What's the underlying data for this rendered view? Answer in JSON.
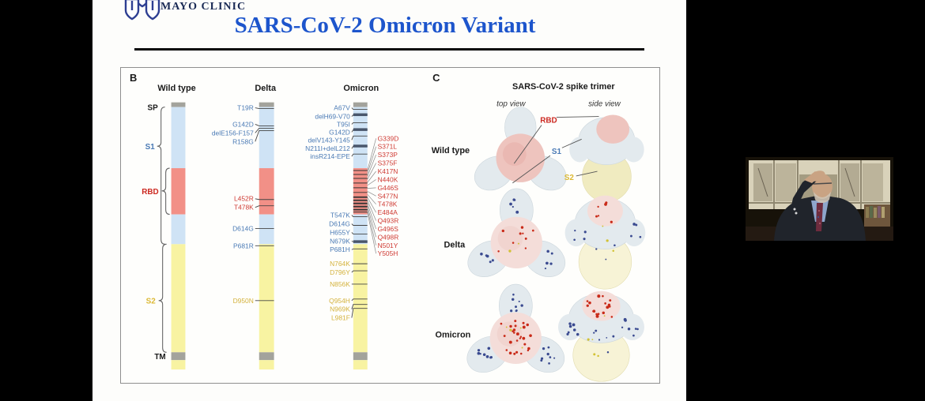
{
  "header": {
    "logo_text": "MAYO CLINIC",
    "title": "SARS-CoV-2 Omicron Variant"
  },
  "panel_b": {
    "label": "B",
    "columns": [
      "Wild type",
      "Delta",
      "Omicron"
    ],
    "regions": {
      "sp": "SP",
      "s1": "S1",
      "rbd": "RBD",
      "s2": "S2",
      "tm": "TM"
    },
    "delta": {
      "s1": [
        "T19R",
        "G142D",
        "delE156-F157",
        "R158G"
      ],
      "rbd": [
        "L452R",
        "T478K"
      ],
      "s1c": [
        "D614G",
        "P681R"
      ],
      "s2": [
        "D950N"
      ]
    },
    "omicron": {
      "ntd": [
        "A67V",
        "delH69-V70",
        "T95I",
        "G142D",
        "delV143-Y145",
        "N211I+delL212",
        "insR214-EPE"
      ],
      "rbd": [
        "G339D",
        "S371L",
        "S373P",
        "S375F",
        "K417N",
        "N440K",
        "G446S",
        "S477N",
        "T478K",
        "E484A",
        "Q493R",
        "G496S",
        "Q498R",
        "N501Y",
        "Y505H"
      ],
      "ctd": [
        "T547K",
        "D614G",
        "H655Y",
        "N679K",
        "P681H"
      ],
      "s2": [
        "N764K",
        "D796Y",
        "N856K",
        "Q954H",
        "N969K",
        "L981F"
      ]
    }
  },
  "panel_c": {
    "label": "C",
    "title": "SARS-CoV-2 spike trimer",
    "views": [
      "top view",
      "side view"
    ],
    "rows": [
      "Wild type",
      "Delta",
      "Omicron"
    ],
    "annotations": {
      "rbd": "RBD",
      "s1": "S1",
      "s2": "S2"
    }
  },
  "colors": {
    "title_blue": "#1d55cc",
    "s1_fill": "#cfe3f5",
    "rbd_fill": "#f29087",
    "s2_fill": "#f8f3a2",
    "cap_fill": "#a3a39c",
    "blue_text": "#4a7ab5",
    "red_text": "#cf3b34",
    "yellow_text": "#d4b23c"
  }
}
